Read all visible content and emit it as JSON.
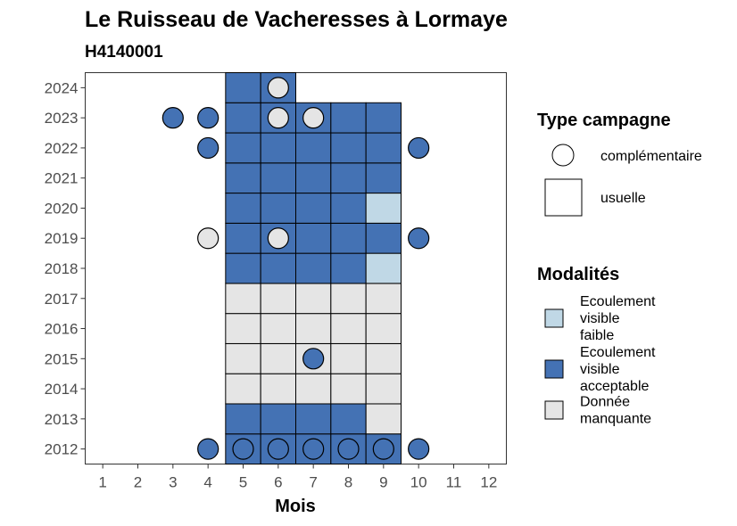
{
  "chart_data": {
    "type": "heatmap",
    "title": "Le Ruisseau de Vacheresses à Lormaye",
    "subtitle": "H4140001",
    "xlabel": "Mois",
    "ylabel": "",
    "x_ticks": [
      "1",
      "2",
      "3",
      "4",
      "5",
      "6",
      "7",
      "8",
      "9",
      "10",
      "11",
      "12"
    ],
    "y_ticks": [
      "2012",
      "2013",
      "2014",
      "2015",
      "2016",
      "2017",
      "2018",
      "2019",
      "2020",
      "2021",
      "2022",
      "2023",
      "2024"
    ],
    "xlim": [
      0.5,
      12.5
    ],
    "ylim": [
      2011.5,
      2024.5
    ],
    "legend_type": {
      "title": "Type campagne",
      "items": [
        {
          "key": "complementaire",
          "label": "complémentaire",
          "shape": "circle"
        },
        {
          "key": "usuelle",
          "label": "usuelle",
          "shape": "square"
        }
      ]
    },
    "legend_modalites": {
      "title": "Modalités",
      "items": [
        {
          "key": "faible",
          "label_lines": [
            "Ecoulement",
            "visible",
            "faible"
          ],
          "color": "#c0d8e6"
        },
        {
          "key": "acceptable",
          "label_lines": [
            "Ecoulement",
            "visible",
            "acceptable"
          ],
          "color": "#4472b4"
        },
        {
          "key": "manquante",
          "label_lines": [
            "Donnée",
            "manquante"
          ],
          "color": "#e5e5e5"
        }
      ]
    },
    "usuelle": [
      {
        "year": 2012,
        "months": {
          "5": "acceptable",
          "6": "acceptable",
          "7": "acceptable",
          "8": "acceptable",
          "9": "acceptable"
        }
      },
      {
        "year": 2013,
        "months": {
          "5": "acceptable",
          "6": "acceptable",
          "7": "acceptable",
          "8": "acceptable",
          "9": "manquante"
        }
      },
      {
        "year": 2014,
        "months": {
          "5": "manquante",
          "6": "manquante",
          "7": "manquante",
          "8": "manquante",
          "9": "manquante"
        }
      },
      {
        "year": 2015,
        "months": {
          "5": "manquante",
          "6": "manquante",
          "7": "manquante",
          "8": "manquante",
          "9": "manquante"
        }
      },
      {
        "year": 2016,
        "months": {
          "5": "manquante",
          "6": "manquante",
          "7": "manquante",
          "8": "manquante",
          "9": "manquante"
        }
      },
      {
        "year": 2017,
        "months": {
          "5": "manquante",
          "6": "manquante",
          "7": "manquante",
          "8": "manquante",
          "9": "manquante"
        }
      },
      {
        "year": 2018,
        "months": {
          "5": "acceptable",
          "6": "acceptable",
          "7": "acceptable",
          "8": "acceptable",
          "9": "faible"
        }
      },
      {
        "year": 2019,
        "months": {
          "5": "acceptable",
          "6": "acceptable",
          "7": "acceptable",
          "8": "acceptable",
          "9": "acceptable"
        }
      },
      {
        "year": 2020,
        "months": {
          "5": "acceptable",
          "6": "acceptable",
          "7": "acceptable",
          "8": "acceptable",
          "9": "faible"
        }
      },
      {
        "year": 2021,
        "months": {
          "5": "acceptable",
          "6": "acceptable",
          "7": "acceptable",
          "8": "acceptable",
          "9": "acceptable"
        }
      },
      {
        "year": 2022,
        "months": {
          "5": "acceptable",
          "6": "acceptable",
          "7": "acceptable",
          "8": "acceptable",
          "9": "acceptable"
        }
      },
      {
        "year": 2023,
        "months": {
          "5": "acceptable",
          "6": "acceptable",
          "7": "acceptable",
          "8": "acceptable",
          "9": "acceptable"
        }
      },
      {
        "year": 2024,
        "months": {
          "5": "acceptable",
          "6": "acceptable"
        }
      }
    ],
    "complementaire": [
      {
        "year": 2012,
        "month": 4,
        "value": "acceptable"
      },
      {
        "year": 2012,
        "month": 5,
        "value": "acceptable"
      },
      {
        "year": 2012,
        "month": 6,
        "value": "acceptable"
      },
      {
        "year": 2012,
        "month": 7,
        "value": "acceptable"
      },
      {
        "year": 2012,
        "month": 8,
        "value": "acceptable"
      },
      {
        "year": 2012,
        "month": 9,
        "value": "acceptable"
      },
      {
        "year": 2012,
        "month": 10,
        "value": "acceptable"
      },
      {
        "year": 2015,
        "month": 7,
        "value": "acceptable"
      },
      {
        "year": 2019,
        "month": 4,
        "value": "manquante"
      },
      {
        "year": 2019,
        "month": 6,
        "value": "manquante"
      },
      {
        "year": 2019,
        "month": 10,
        "value": "acceptable"
      },
      {
        "year": 2022,
        "month": 4,
        "value": "acceptable"
      },
      {
        "year": 2022,
        "month": 10,
        "value": "acceptable"
      },
      {
        "year": 2023,
        "month": 3,
        "value": "acceptable"
      },
      {
        "year": 2023,
        "month": 4,
        "value": "acceptable"
      },
      {
        "year": 2023,
        "month": 6,
        "value": "manquante"
      },
      {
        "year": 2023,
        "month": 7,
        "value": "manquante"
      },
      {
        "year": 2024,
        "month": 6,
        "value": "manquante"
      }
    ],
    "grid": false,
    "legend_position": "right"
  }
}
